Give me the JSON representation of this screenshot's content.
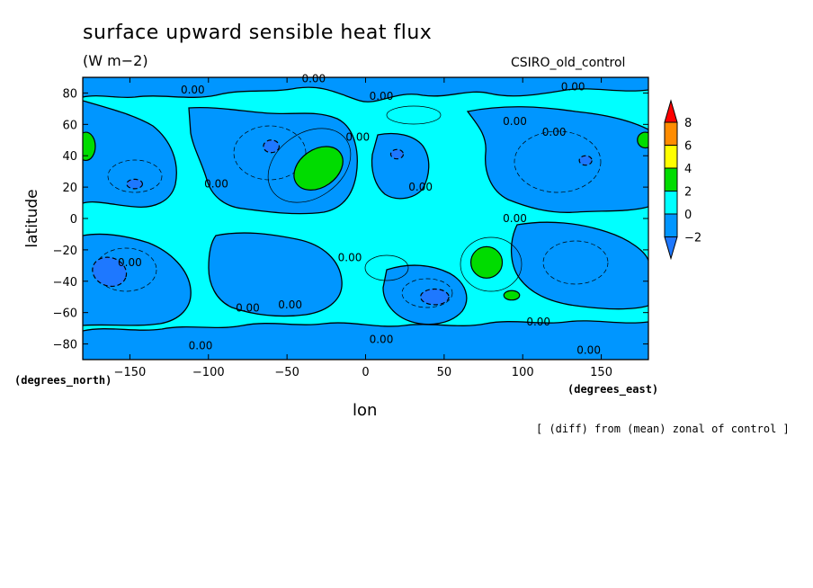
{
  "chart_data": {
    "type": "heatmap",
    "title": "surface upward sensible heat flux",
    "units": "(W m−2)",
    "model": "CSIRO_old_control",
    "xlabel": "lon",
    "ylabel": "latitude",
    "x_units": "(degrees_east)",
    "y_units": "(degrees_north)",
    "note": "[ (diff) from (mean) zonal of control ]",
    "xlim": [
      -180,
      180
    ],
    "ylim": [
      -90,
      90
    ],
    "x_ticks": [
      -150,
      -100,
      -50,
      0,
      50,
      100,
      150
    ],
    "y_ticks": [
      80,
      60,
      40,
      20,
      0,
      -20,
      -40,
      -60,
      -80
    ],
    "x_tick_labels": [
      "−150",
      "−100",
      "−50",
      "0",
      "50",
      "100",
      "150"
    ],
    "y_tick_labels": [
      "80",
      "60",
      "40",
      "20",
      "0",
      "−20",
      "−40",
      "−60",
      "−80"
    ],
    "colorbar": {
      "levels": [
        -2,
        0,
        2,
        4,
        6,
        8
      ],
      "labels": [
        "−2",
        "0",
        "2",
        "4",
        "6",
        "8"
      ],
      "colors": [
        "#1e78ff",
        "#0096ff",
        "#00ffff",
        "#00dc00",
        "#ffff00",
        "#ff8c00",
        "#ff0000"
      ]
    },
    "contour_labels": [
      {
        "text": "0.00",
        "lon": -110,
        "lat": 82
      },
      {
        "text": "0.00",
        "lon": -33,
        "lat": 89
      },
      {
        "text": "0.00",
        "lon": 10,
        "lat": 78
      },
      {
        "text": "0.00",
        "lon": 132,
        "lat": 84
      },
      {
        "text": "0.00",
        "lon": 95,
        "lat": 62
      },
      {
        "text": "0.00",
        "lon": 120,
        "lat": 55
      },
      {
        "text": "0.00",
        "lon": -5,
        "lat": 52
      },
      {
        "text": "0.00",
        "lon": 35,
        "lat": 20
      },
      {
        "text": "0.00",
        "lon": -95,
        "lat": 22
      },
      {
        "text": "0.00",
        "lon": 95,
        "lat": 0
      },
      {
        "text": "0.00",
        "lon": -150,
        "lat": -28
      },
      {
        "text": "0.00",
        "lon": -10,
        "lat": -25
      },
      {
        "text": "0.00",
        "lon": -75,
        "lat": -57
      },
      {
        "text": "0.00",
        "lon": -48,
        "lat": -55
      },
      {
        "text": "0.00",
        "lon": 110,
        "lat": -66
      },
      {
        "text": "0.00",
        "lon": -105,
        "lat": -81
      },
      {
        "text": "0.00",
        "lon": 10,
        "lat": -77
      },
      {
        "text": "0.00",
        "lon": 142,
        "lat": -84
      }
    ],
    "anomaly_regions": [
      {
        "level": 2,
        "lon": -30,
        "lat": 32,
        "r_lon": 17,
        "r_lat": 12,
        "rot": -35
      },
      {
        "level": 2,
        "lon": 77,
        "lat": -28,
        "r_lon": 10,
        "r_lat": 10,
        "rot": 0
      },
      {
        "level": 2,
        "lon": 93,
        "lat": -49,
        "r_lon": 5,
        "r_lat": 3,
        "rot": 0
      },
      {
        "level": 2,
        "lon": -178,
        "lat": 46,
        "r_lon": 6,
        "r_lat": 9,
        "rot": 0
      },
      {
        "level": 2,
        "lon": 178,
        "lat": 50,
        "r_lon": 5,
        "r_lat": 5,
        "rot": 0
      },
      {
        "level": -2,
        "lon": -163,
        "lat": -34,
        "r_lon": 11,
        "r_lat": 9,
        "rot": 20
      },
      {
        "level": -2,
        "lon": -147,
        "lat": 22,
        "r_lon": 5,
        "r_lat": 3,
        "rot": 0
      },
      {
        "level": -2,
        "lon": 44,
        "lat": -50,
        "r_lon": 9,
        "r_lat": 5,
        "rot": 0
      },
      {
        "level": -2,
        "lon": -60,
        "lat": 46,
        "r_lon": 5,
        "r_lat": 4,
        "rot": 0
      },
      {
        "level": -2,
        "lon": 20,
        "lat": 41,
        "r_lon": 4,
        "r_lat": 3,
        "rot": 0
      },
      {
        "level": -2,
        "lon": 140,
        "lat": 37,
        "r_lon": 4,
        "r_lat": 3,
        "rot": 0
      }
    ]
  }
}
